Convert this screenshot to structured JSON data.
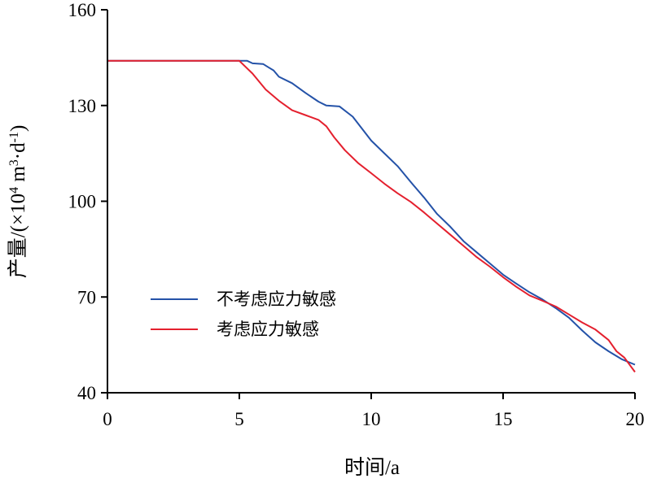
{
  "chart_data": {
    "type": "line",
    "title": "",
    "xlabel": "时间/a",
    "ylabel": {
      "prefix": "产量/(×10",
      "exp1": "4",
      "mid1": " m",
      "exp2": "3",
      "mid2": "·d",
      "exp3": "-1",
      "suffix": ")"
    },
    "xlim": [
      0,
      20
    ],
    "ylim": [
      40,
      160
    ],
    "xticks": [
      0,
      5,
      10,
      15,
      20
    ],
    "yticks": [
      40,
      70,
      100,
      130,
      160
    ],
    "grid": false,
    "legend_position": "lower-left",
    "series": [
      {
        "name": "不考虑应力敏感",
        "color": "#2452a8",
        "points": [
          [
            0,
            144
          ],
          [
            5.3,
            144
          ],
          [
            5.5,
            143.2
          ],
          [
            5.9,
            143
          ],
          [
            6.1,
            142
          ],
          [
            6.3,
            141
          ],
          [
            6.5,
            139
          ],
          [
            7,
            137
          ],
          [
            7.5,
            134
          ],
          [
            8,
            131.2
          ],
          [
            8.3,
            130
          ],
          [
            8.8,
            129.7
          ],
          [
            9.3,
            126.5
          ],
          [
            10,
            119
          ],
          [
            10.5,
            115
          ],
          [
            11,
            111
          ],
          [
            11.5,
            106
          ],
          [
            12,
            101.2
          ],
          [
            12.5,
            96
          ],
          [
            13,
            92
          ],
          [
            13.5,
            87.5
          ],
          [
            14,
            84
          ],
          [
            14.5,
            80.5
          ],
          [
            15,
            77
          ],
          [
            15.5,
            74.2
          ],
          [
            16,
            71.5
          ],
          [
            16.5,
            69.2
          ],
          [
            17,
            66.5
          ],
          [
            17.5,
            63.5
          ],
          [
            18,
            59.5
          ],
          [
            18.5,
            55.8
          ],
          [
            19,
            53
          ],
          [
            19.5,
            50.5
          ],
          [
            20,
            48.8
          ]
        ]
      },
      {
        "name": "考虑应力敏感",
        "color": "#e4202e",
        "points": [
          [
            0,
            144
          ],
          [
            5,
            144
          ],
          [
            5.5,
            140
          ],
          [
            6,
            135
          ],
          [
            6.5,
            131.5
          ],
          [
            7,
            128.5
          ],
          [
            7.5,
            127
          ],
          [
            8,
            125.5
          ],
          [
            8.3,
            123.5
          ],
          [
            8.6,
            120
          ],
          [
            9,
            116
          ],
          [
            9.5,
            112
          ],
          [
            10,
            108.8
          ],
          [
            10.5,
            105.5
          ],
          [
            11,
            102.5
          ],
          [
            11.5,
            99.8
          ],
          [
            12,
            96.5
          ],
          [
            12.5,
            93
          ],
          [
            13,
            89.5
          ],
          [
            13.5,
            86
          ],
          [
            14,
            82.5
          ],
          [
            14.5,
            79.5
          ],
          [
            15,
            76.2
          ],
          [
            15.5,
            73.2
          ],
          [
            16,
            70.5
          ],
          [
            16.5,
            68.8
          ],
          [
            17,
            67
          ],
          [
            17.5,
            64.5
          ],
          [
            18,
            62
          ],
          [
            18.5,
            59.8
          ],
          [
            19,
            56.5
          ],
          [
            19.3,
            53
          ],
          [
            19.6,
            51
          ],
          [
            20,
            46.5
          ]
        ]
      }
    ]
  }
}
